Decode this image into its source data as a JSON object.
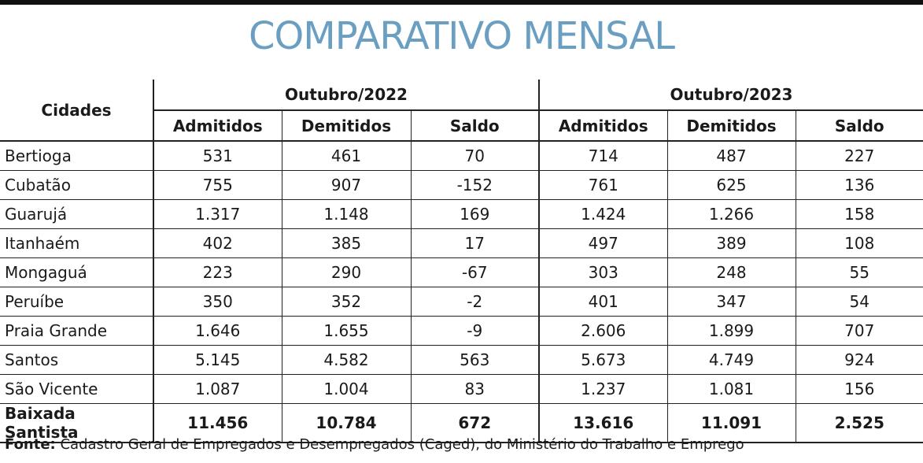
{
  "title": "COMPARATIVO MENSAL",
  "source_label": "Fonte:",
  "source_text": " Cadastro Geral de Empregados e Desempregados (Caged), do Ministério do Trabalho e Emprego",
  "chart_data": {
    "type": "table",
    "title": "COMPARATIVO MENSAL",
    "row_header": "Cidades",
    "groups": [
      "Outubro/2022",
      "Outubro/2023"
    ],
    "columns": [
      "Admitidos",
      "Demitidos",
      "Saldo"
    ],
    "rows": [
      {
        "city": "Bertioga",
        "values": [
          "531",
          "461",
          "70",
          "714",
          "487",
          "227"
        ]
      },
      {
        "city": "Cubatão",
        "values": [
          "755",
          "907",
          "-152",
          "761",
          "625",
          "136"
        ]
      },
      {
        "city": "Guarujá",
        "values": [
          "1.317",
          "1.148",
          "169",
          "1.424",
          "1.266",
          "158"
        ]
      },
      {
        "city": "Itanhaém",
        "values": [
          "402",
          "385",
          "17",
          "497",
          "389",
          "108"
        ]
      },
      {
        "city": "Mongaguá",
        "values": [
          "223",
          "290",
          "-67",
          "303",
          "248",
          "55"
        ]
      },
      {
        "city": "Peruíbe",
        "values": [
          "350",
          "352",
          "-2",
          "401",
          "347",
          "54"
        ]
      },
      {
        "city": "Praia Grande",
        "values": [
          "1.646",
          "1.655",
          "-9",
          "2.606",
          "1.899",
          "707"
        ]
      },
      {
        "city": "Santos",
        "values": [
          "5.145",
          "4.582",
          "563",
          "5.673",
          "4.749",
          "924"
        ]
      },
      {
        "city": "São Vicente",
        "values": [
          "1.087",
          "1.004",
          "83",
          "1.237",
          "1.081",
          "156"
        ]
      }
    ],
    "total": {
      "city": "Baixada Santista",
      "values": [
        "11.456",
        "10.784",
        "672",
        "13.616",
        "11.091",
        "2.525"
      ]
    }
  }
}
